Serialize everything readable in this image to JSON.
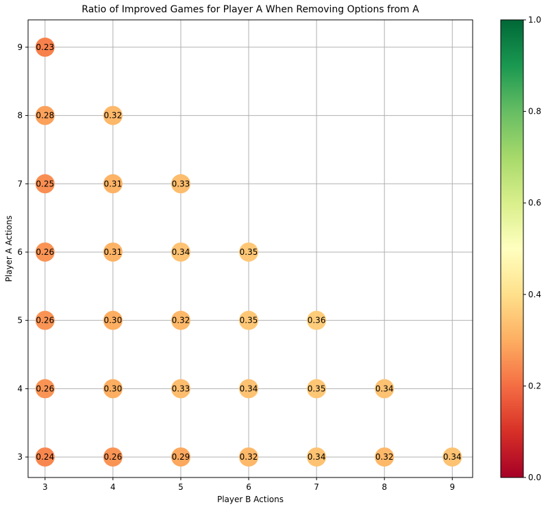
{
  "chart_data": {
    "type": "scatter",
    "title": "Ratio of Improved Games for Player A When Removing Options from A",
    "xlabel": "Player B Actions",
    "ylabel": "Player A Actions",
    "xlim": [
      2.75,
      9.3
    ],
    "ylim": [
      2.7,
      9.4
    ],
    "xticks": [
      3,
      4,
      5,
      6,
      7,
      8,
      9
    ],
    "yticks": [
      3,
      4,
      5,
      6,
      7,
      8,
      9
    ],
    "grid": true,
    "colormap": "RdYlGn",
    "color_range": [
      0.0,
      1.0
    ],
    "colorbar_ticks": [
      0.0,
      0.2,
      0.4,
      0.6,
      0.8,
      1.0
    ],
    "colorbar_tick_labels": [
      "0.0",
      "0.2",
      "0.4",
      "0.6",
      "0.8",
      "1.0"
    ],
    "points": [
      {
        "x": 3,
        "y": 9,
        "value": 0.23,
        "label": "0.23"
      },
      {
        "x": 3,
        "y": 8,
        "value": 0.28,
        "label": "0.28"
      },
      {
        "x": 4,
        "y": 8,
        "value": 0.32,
        "label": "0.32"
      },
      {
        "x": 3,
        "y": 7,
        "value": 0.25,
        "label": "0.25"
      },
      {
        "x": 4,
        "y": 7,
        "value": 0.31,
        "label": "0.31"
      },
      {
        "x": 5,
        "y": 7,
        "value": 0.33,
        "label": "0.33"
      },
      {
        "x": 3,
        "y": 6,
        "value": 0.26,
        "label": "0.26"
      },
      {
        "x": 4,
        "y": 6,
        "value": 0.31,
        "label": "0.31"
      },
      {
        "x": 5,
        "y": 6,
        "value": 0.34,
        "label": "0.34"
      },
      {
        "x": 6,
        "y": 6,
        "value": 0.35,
        "label": "0.35"
      },
      {
        "x": 3,
        "y": 5,
        "value": 0.26,
        "label": "0.26"
      },
      {
        "x": 4,
        "y": 5,
        "value": 0.3,
        "label": "0.30"
      },
      {
        "x": 5,
        "y": 5,
        "value": 0.32,
        "label": "0.32"
      },
      {
        "x": 6,
        "y": 5,
        "value": 0.35,
        "label": "0.35"
      },
      {
        "x": 7,
        "y": 5,
        "value": 0.36,
        "label": "0.36"
      },
      {
        "x": 3,
        "y": 4,
        "value": 0.26,
        "label": "0.26"
      },
      {
        "x": 4,
        "y": 4,
        "value": 0.3,
        "label": "0.30"
      },
      {
        "x": 5,
        "y": 4,
        "value": 0.33,
        "label": "0.33"
      },
      {
        "x": 6,
        "y": 4,
        "value": 0.34,
        "label": "0.34"
      },
      {
        "x": 7,
        "y": 4,
        "value": 0.35,
        "label": "0.35"
      },
      {
        "x": 8,
        "y": 4,
        "value": 0.34,
        "label": "0.34"
      },
      {
        "x": 3,
        "y": 3,
        "value": 0.24,
        "label": "0.24"
      },
      {
        "x": 4,
        "y": 3,
        "value": 0.26,
        "label": "0.26"
      },
      {
        "x": 5,
        "y": 3,
        "value": 0.29,
        "label": "0.29"
      },
      {
        "x": 6,
        "y": 3,
        "value": 0.32,
        "label": "0.32"
      },
      {
        "x": 7,
        "y": 3,
        "value": 0.34,
        "label": "0.34"
      },
      {
        "x": 8,
        "y": 3,
        "value": 0.32,
        "label": "0.32"
      },
      {
        "x": 9,
        "y": 3,
        "value": 0.34,
        "label": "0.34"
      }
    ]
  }
}
